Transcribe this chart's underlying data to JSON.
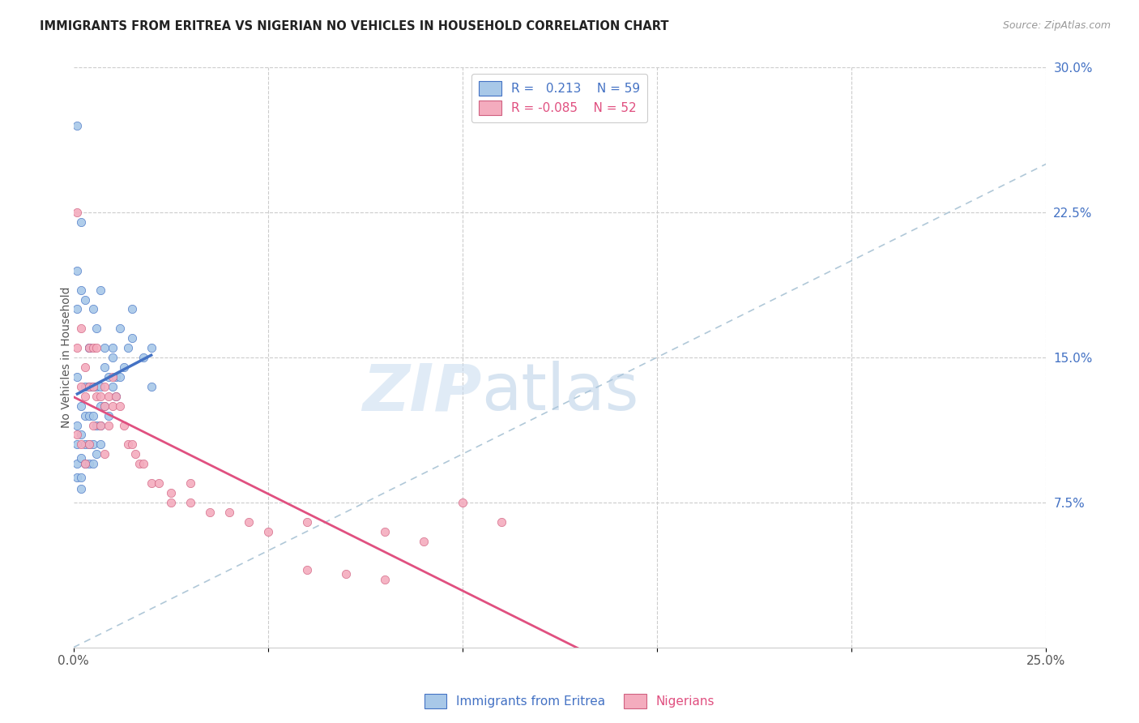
{
  "title": "IMMIGRANTS FROM ERITREA VS NIGERIAN NO VEHICLES IN HOUSEHOLD CORRELATION CHART",
  "source": "Source: ZipAtlas.com",
  "ylabel": "No Vehicles in Household",
  "xlim": [
    0.0,
    0.25
  ],
  "ylim": [
    0.0,
    0.3
  ],
  "color_eritrea": "#A8C8E8",
  "color_nigerian": "#F4ACBE",
  "color_trendline_eritrea": "#4472C4",
  "color_trendline_nigerian": "#E05080",
  "color_diag": "#B0C8D8",
  "watermark_zip": "ZIP",
  "watermark_atlas": "atlas",
  "eritrea_x": [
    0.001,
    0.001,
    0.001,
    0.001,
    0.001,
    0.001,
    0.001,
    0.002,
    0.002,
    0.002,
    0.002,
    0.002,
    0.003,
    0.003,
    0.003,
    0.003,
    0.004,
    0.004,
    0.004,
    0.004,
    0.004,
    0.005,
    0.005,
    0.005,
    0.005,
    0.006,
    0.006,
    0.006,
    0.007,
    0.007,
    0.007,
    0.007,
    0.008,
    0.008,
    0.009,
    0.009,
    0.01,
    0.01,
    0.011,
    0.011,
    0.012,
    0.013,
    0.014,
    0.015,
    0.018,
    0.02,
    0.001,
    0.002,
    0.002,
    0.003,
    0.004,
    0.005,
    0.006,
    0.007,
    0.008,
    0.01,
    0.012,
    0.015,
    0.02
  ],
  "eritrea_y": [
    0.195,
    0.175,
    0.14,
    0.115,
    0.105,
    0.095,
    0.088,
    0.125,
    0.11,
    0.098,
    0.088,
    0.082,
    0.135,
    0.12,
    0.105,
    0.095,
    0.155,
    0.135,
    0.12,
    0.105,
    0.095,
    0.135,
    0.12,
    0.105,
    0.095,
    0.135,
    0.115,
    0.1,
    0.135,
    0.125,
    0.115,
    0.105,
    0.145,
    0.125,
    0.14,
    0.12,
    0.15,
    0.135,
    0.14,
    0.13,
    0.14,
    0.145,
    0.155,
    0.16,
    0.15,
    0.135,
    0.27,
    0.185,
    0.22,
    0.18,
    0.155,
    0.175,
    0.165,
    0.185,
    0.155,
    0.155,
    0.165,
    0.175,
    0.155
  ],
  "nigerian_x": [
    0.001,
    0.001,
    0.001,
    0.002,
    0.002,
    0.002,
    0.003,
    0.003,
    0.003,
    0.004,
    0.004,
    0.004,
    0.005,
    0.005,
    0.005,
    0.006,
    0.006,
    0.007,
    0.007,
    0.008,
    0.008,
    0.008,
    0.009,
    0.009,
    0.01,
    0.01,
    0.011,
    0.012,
    0.013,
    0.014,
    0.015,
    0.016,
    0.017,
    0.018,
    0.02,
    0.022,
    0.025,
    0.025,
    0.03,
    0.03,
    0.035,
    0.06,
    0.08,
    0.09,
    0.04,
    0.045,
    0.05,
    0.1,
    0.11,
    0.06,
    0.07,
    0.08
  ],
  "nigerian_y": [
    0.225,
    0.155,
    0.11,
    0.165,
    0.135,
    0.105,
    0.145,
    0.13,
    0.095,
    0.155,
    0.135,
    0.105,
    0.155,
    0.135,
    0.115,
    0.155,
    0.13,
    0.13,
    0.115,
    0.135,
    0.125,
    0.1,
    0.13,
    0.115,
    0.14,
    0.125,
    0.13,
    0.125,
    0.115,
    0.105,
    0.105,
    0.1,
    0.095,
    0.095,
    0.085,
    0.085,
    0.08,
    0.075,
    0.085,
    0.075,
    0.07,
    0.065,
    0.06,
    0.055,
    0.07,
    0.065,
    0.06,
    0.075,
    0.065,
    0.04,
    0.038,
    0.035
  ]
}
